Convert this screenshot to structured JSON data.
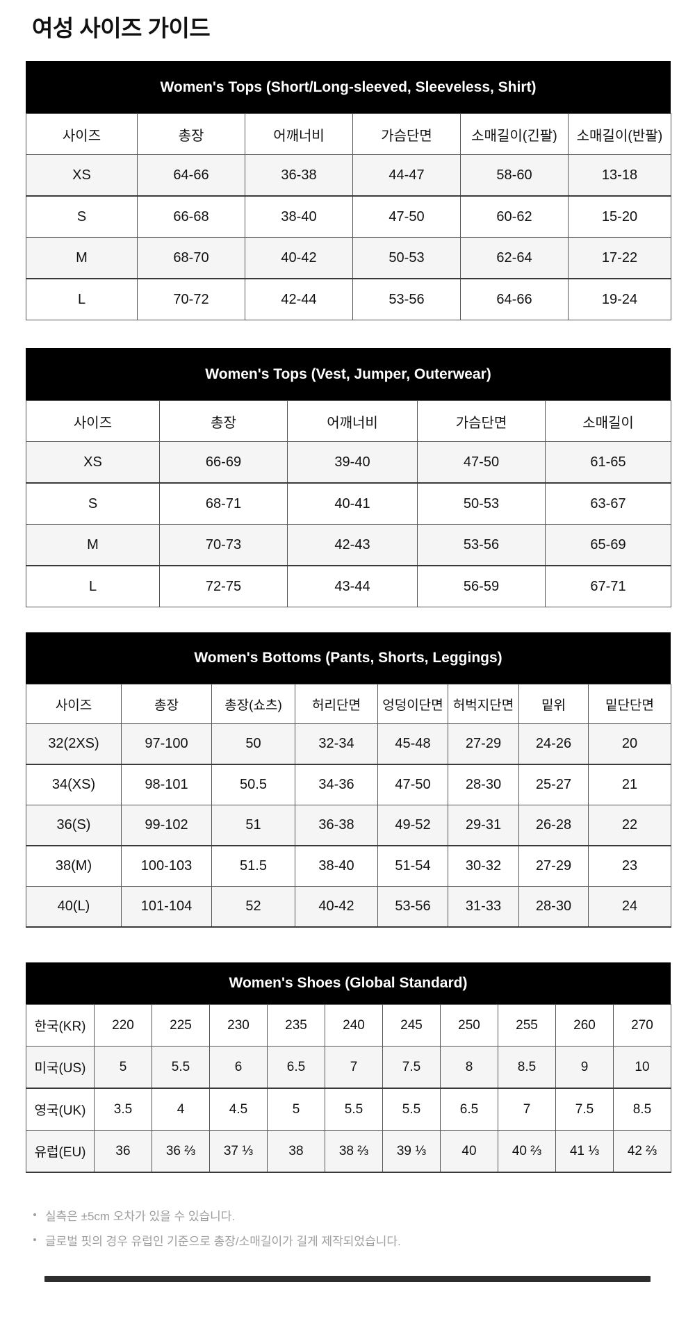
{
  "page": {
    "title": "여성 사이즈 가이드"
  },
  "colors": {
    "header_band": "#000000",
    "band_text": "#ffffff",
    "stripe": "#f5f5f6",
    "border": "#565656",
    "footnote_text": "#9e9e9e",
    "divider": "#2e2e2e"
  },
  "tables": [
    {
      "caption": "Women's Tops (Short/Long-sleeved, Sleeveless, Shirt)",
      "columns": [
        "사이즈",
        "총장",
        "어깨너비",
        "가슴단면",
        "소매길이(긴팔)",
        "소매길이(반팔)"
      ],
      "rows": [
        [
          "XS",
          "64-66",
          "36-38",
          "44-47",
          "58-60",
          "13-18"
        ],
        [
          "S",
          "66-68",
          "38-40",
          "47-50",
          "60-62",
          "15-20"
        ],
        [
          "M",
          "68-70",
          "40-42",
          "50-53",
          "62-64",
          "17-22"
        ],
        [
          "L",
          "70-72",
          "42-44",
          "53-56",
          "64-66",
          "19-24"
        ]
      ]
    },
    {
      "caption": "Women's Tops (Vest, Jumper, Outerwear)",
      "columns": [
        "사이즈",
        "총장",
        "어깨너비",
        "가슴단면",
        "소매길이"
      ],
      "rows": [
        [
          "XS",
          "66-69",
          "39-40",
          "47-50",
          "61-65"
        ],
        [
          "S",
          "68-71",
          "40-41",
          "50-53",
          "63-67"
        ],
        [
          "M",
          "70-73",
          "42-43",
          "53-56",
          "65-69"
        ],
        [
          "L",
          "72-75",
          "43-44",
          "56-59",
          "67-71"
        ]
      ]
    },
    {
      "caption": "Women's Bottoms (Pants, Shorts, Leggings)",
      "columns": [
        "사이즈",
        "총장",
        "총장(쇼츠)",
        "허리단면",
        "엉덩이단면",
        "허벅지단면",
        "밑위",
        "밑단단면"
      ],
      "rows": [
        [
          "32(2XS)",
          "97-100",
          "50",
          "32-34",
          "45-48",
          "27-29",
          "24-26",
          "20"
        ],
        [
          "34(XS)",
          "98-101",
          "50.5",
          "34-36",
          "47-50",
          "28-30",
          "25-27",
          "21"
        ],
        [
          "36(S)",
          "99-102",
          "51",
          "36-38",
          "49-52",
          "29-31",
          "26-28",
          "22"
        ],
        [
          "38(M)",
          "100-103",
          "51.5",
          "38-40",
          "51-54",
          "30-32",
          "27-29",
          "23"
        ],
        [
          "40(L)",
          "101-104",
          "52",
          "40-42",
          "53-56",
          "31-33",
          "28-30",
          "24"
        ]
      ]
    },
    {
      "caption": "Women's Shoes (Global Standard)",
      "columns": [],
      "rows": [
        [
          "한국(KR)",
          "220",
          "225",
          "230",
          "235",
          "240",
          "245",
          "250",
          "255",
          "260",
          "270"
        ],
        [
          "미국(US)",
          "5",
          "5.5",
          "6",
          "6.5",
          "7",
          "7.5",
          "8",
          "8.5",
          "9",
          "10"
        ],
        [
          "영국(UK)",
          "3.5",
          "4",
          "4.5",
          "5",
          "5.5",
          "5.5",
          "6.5",
          "7",
          "7.5",
          "8.5"
        ],
        [
          "유럽(EU)",
          "36",
          "36 ⅔",
          "37 ⅓",
          "38",
          "38 ⅔",
          "39 ⅓",
          "40",
          "40 ⅔",
          "41 ⅓",
          "42 ⅔"
        ]
      ]
    }
  ],
  "footnotes": [
    "실측은 ±5cm 오차가 있을 수 있습니다.",
    "글로벌 핏의 경우 유럽인 기준으로 총장/소매길이가 길게 제작되었습니다."
  ]
}
